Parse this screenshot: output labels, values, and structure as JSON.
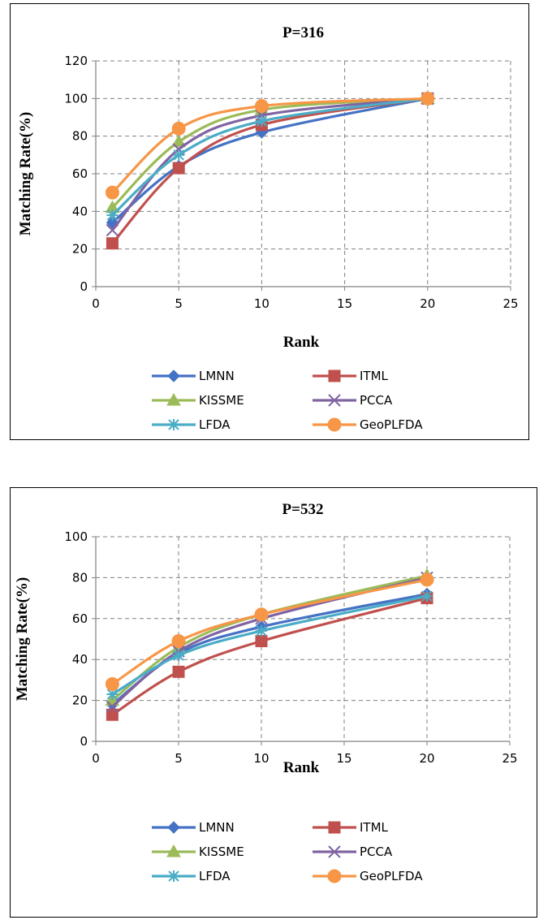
{
  "chart_data": [
    {
      "type": "line",
      "title": "P=316",
      "xlabel": "Rank",
      "ylabel": "Matching Rate(%)",
      "xlim": [
        0,
        25
      ],
      "ylim": [
        0,
        120
      ],
      "xticks": [
        "0",
        "5",
        "10",
        "15",
        "20",
        "25"
      ],
      "yticks": [
        "0",
        "20",
        "40",
        "60",
        "80",
        "100",
        "120"
      ],
      "grid": true,
      "legend": "bottom",
      "x": [
        1,
        5,
        10,
        20
      ],
      "series": [
        {
          "name": "LMNN",
          "values": [
            34,
            64,
            82,
            100
          ],
          "color": "#4472C4",
          "marker": "diamond"
        },
        {
          "name": "ITML",
          "values": [
            23,
            63,
            86,
            100
          ],
          "color": "#C0504D",
          "marker": "square"
        },
        {
          "name": "KISSME",
          "values": [
            42,
            77,
            94,
            100
          ],
          "color": "#9BBB59",
          "marker": "triangle"
        },
        {
          "name": "PCCA",
          "values": [
            30,
            73,
            91,
            100
          ],
          "color": "#8064A2",
          "marker": "x"
        },
        {
          "name": "LFDA",
          "values": [
            38,
            70,
            88,
            100
          ],
          "color": "#4BACC6",
          "marker": "star"
        },
        {
          "name": "GeoPLFDA",
          "values": [
            50,
            84,
            96,
            100
          ],
          "color": "#F79646",
          "marker": "circle"
        }
      ]
    },
    {
      "type": "line",
      "title": "P=532",
      "xlabel": "Rank",
      "ylabel": "Matching Rate(%)",
      "xlim": [
        0,
        25
      ],
      "ylim": [
        0,
        100
      ],
      "xticks": [
        "0",
        "5",
        "10",
        "15",
        "20",
        "25"
      ],
      "yticks": [
        "0",
        "20",
        "40",
        "60",
        "80",
        "100"
      ],
      "grid": true,
      "legend": "bottom",
      "x": [
        1,
        5,
        10,
        20
      ],
      "series": [
        {
          "name": "LMNN",
          "values": [
            18,
            43,
            56,
            72
          ],
          "color": "#4472C4",
          "marker": "diamond"
        },
        {
          "name": "ITML",
          "values": [
            13,
            34,
            49,
            70
          ],
          "color": "#C0504D",
          "marker": "square"
        },
        {
          "name": "KISSME",
          "values": [
            20,
            46,
            62,
            81
          ],
          "color": "#9BBB59",
          "marker": "triangle"
        },
        {
          "name": "PCCA",
          "values": [
            17,
            44,
            60,
            80
          ],
          "color": "#8064A2",
          "marker": "x"
        },
        {
          "name": "LFDA",
          "values": [
            23,
            42,
            54,
            71
          ],
          "color": "#4BACC6",
          "marker": "star"
        },
        {
          "name": "GeoPLFDA",
          "values": [
            28,
            49,
            62,
            79
          ],
          "color": "#F79646",
          "marker": "circle"
        }
      ]
    }
  ]
}
